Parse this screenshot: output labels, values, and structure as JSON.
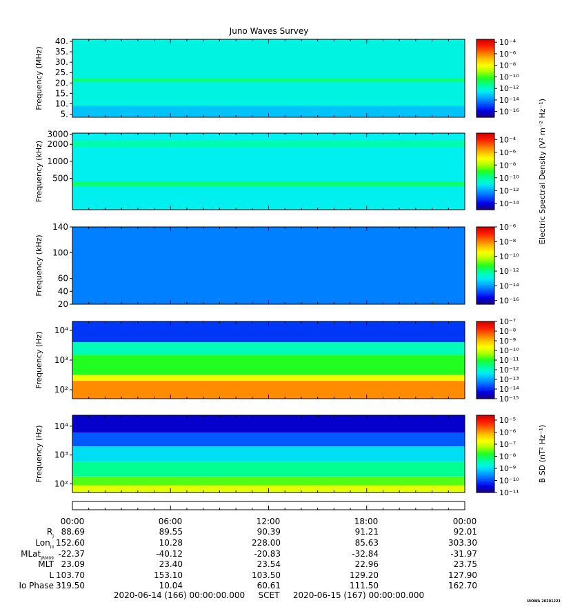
{
  "title": "Juno Waves Survey",
  "colors": {
    "ramp": [
      "#1a0080",
      "#0000e6",
      "#0055ff",
      "#00a8ff",
      "#00f0f0",
      "#00ff9a",
      "#20ff20",
      "#a8ff00",
      "#ffff00",
      "#ffc000",
      "#ff6a00",
      "#ff1a00",
      "#c80000"
    ]
  },
  "chart_data": [
    {
      "type": "heatmap",
      "ylabel": "Frequency (MHz)",
      "yticks": [
        {
          "label": "40.",
          "value": 40
        },
        {
          "label": "35.",
          "value": 35
        },
        {
          "label": "30.",
          "value": 30
        },
        {
          "label": "25.",
          "value": 25
        },
        {
          "label": "20.",
          "value": 20
        },
        {
          "label": "15.",
          "value": 15
        },
        {
          "label": "10.",
          "value": 10
        },
        {
          "label": "5.",
          "value": 5
        }
      ],
      "yscale": "linear",
      "ylim": [
        3.5,
        41
      ],
      "colorbar": {
        "ticks": [
          -4,
          -6,
          -8,
          -10,
          -12,
          -14,
          -16
        ],
        "range": [
          -17,
          -3.5
        ],
        "label": ""
      },
      "bands": [
        {
          "from": 3.5,
          "to": 41,
          "level": -12.3
        },
        {
          "from": 20.6,
          "to": 22.2,
          "level": -11.0
        },
        {
          "from": 3.5,
          "to": 9.0,
          "level": -13.2
        }
      ]
    },
    {
      "type": "heatmap",
      "ylabel": "Frequency (kHz)",
      "yticks": [
        {
          "label": "3000",
          "value": 3000
        },
        {
          "label": "2000",
          "value": 2000
        },
        {
          "label": "1000",
          "value": 1000
        },
        {
          "label": "500",
          "value": 500
        }
      ],
      "yscale": "log",
      "ylim": [
        140,
        3150
      ],
      "colorbar": {
        "ticks": [
          -4,
          -6,
          -8,
          -10,
          -12,
          -14
        ],
        "range": [
          -15,
          -3
        ],
        "label": "Electric Spectral Density (V² m⁻² Hz⁻¹)"
      },
      "bands": [
        {
          "from": 140,
          "to": 3150,
          "level": -11.0
        },
        {
          "from": 360,
          "to": 440,
          "level": -9.6
        },
        {
          "from": 1800,
          "to": 2300,
          "level": -10.2
        }
      ]
    },
    {
      "type": "heatmap",
      "ylabel": "Frequency (kHz)",
      "yticks": [
        {
          "label": "140",
          "value": 140
        },
        {
          "label": "100",
          "value": 100
        },
        {
          "label": "60",
          "value": 60
        },
        {
          "label": "40",
          "value": 40
        },
        {
          "label": "20",
          "value": 20
        }
      ],
      "yscale": "linear",
      "ylim": [
        20,
        140
      ],
      "colorbar": {
        "ticks": [
          -6,
          -8,
          -10,
          -12,
          -14,
          -16
        ],
        "range": [
          -16.5,
          -6
        ],
        "label": ""
      },
      "bands": [
        {
          "from": 20,
          "to": 140,
          "level": -14.3
        }
      ]
    },
    {
      "type": "heatmap",
      "ylabel": "Frequency (Hz)",
      "yticks": [
        {
          "label": "10⁴",
          "value": 10000
        },
        {
          "label": "10³",
          "value": 1000
        },
        {
          "label": "10²",
          "value": 100
        }
      ],
      "yscale": "log",
      "ylim": [
        50,
        20000
      ],
      "colorbar": {
        "ticks": [
          -7,
          -8,
          -9,
          -10,
          -11,
          -12,
          -13,
          -14,
          -15
        ],
        "range": [
          -15,
          -7
        ],
        "label": ""
      },
      "bands": [
        {
          "from": 50,
          "to": 200,
          "level": -8.6
        },
        {
          "from": 200,
          "to": 320,
          "level": -9.8
        },
        {
          "from": 320,
          "to": 1500,
          "level": -11.0
        },
        {
          "from": 1500,
          "to": 4000,
          "level": -11.9
        },
        {
          "from": 4000,
          "to": 20000,
          "level": -13.9
        }
      ]
    },
    {
      "type": "heatmap",
      "ylabel": "Frequency (Hz)",
      "yticks": [
        {
          "label": "10⁴",
          "value": 10000
        },
        {
          "label": "10³",
          "value": 1000
        },
        {
          "label": "10²",
          "value": 100
        }
      ],
      "yscale": "log",
      "ylim": [
        50,
        24000
      ],
      "colorbar": {
        "ticks": [
          -5,
          -6,
          -7,
          -8,
          -9,
          -10,
          -11
        ],
        "range": [
          -11,
          -4.6
        ],
        "label": "B SD (nT² Hz⁻¹)"
      },
      "bands": [
        {
          "from": 50,
          "to": 90,
          "level": -6.9
        },
        {
          "from": 90,
          "to": 180,
          "level": -7.6
        },
        {
          "from": 180,
          "to": 600,
          "level": -8.3
        },
        {
          "from": 600,
          "to": 2000,
          "level": -9.0
        },
        {
          "from": 2000,
          "to": 6000,
          "level": -9.9
        },
        {
          "from": 6000,
          "to": 24000,
          "level": -10.6
        }
      ]
    }
  ],
  "time_axis": {
    "ticks": [
      "00:00",
      "06:00",
      "12:00",
      "18:00",
      "00:00"
    ],
    "start_label": "2020-06-14 (166) 00:00:00.000",
    "scet_label": "SCET",
    "end_label": "2020-06-15 (167) 00:00:00.000"
  },
  "ephemeris": [
    {
      "label": "R",
      "sub": "J",
      "values": [
        "88.69",
        "89.55",
        "90.39",
        "91.21",
        "92.01"
      ]
    },
    {
      "label": "Lon",
      "sub": "III",
      "values": [
        "152.60",
        "10.28",
        "228.00",
        "85.63",
        "303.30"
      ]
    },
    {
      "label": "MLat",
      "sub": "JRM09",
      "values": [
        "-22.37",
        "-40.12",
        "-20.83",
        "-32.84",
        "-31.97"
      ]
    },
    {
      "label": "MLT",
      "sub": "",
      "values": [
        "23.09",
        "23.40",
        "23.54",
        "22.96",
        "23.75"
      ]
    },
    {
      "label": "L",
      "sub": "",
      "values": [
        "103.70",
        "153.10",
        "103.50",
        "129.20",
        "127.90"
      ]
    },
    {
      "label": "Io Phase",
      "sub": "",
      "values": [
        "319.50",
        "10.04",
        "60.61",
        "111.50",
        "162.70"
      ]
    }
  ],
  "footer_tag": "UIOWA 20201221"
}
